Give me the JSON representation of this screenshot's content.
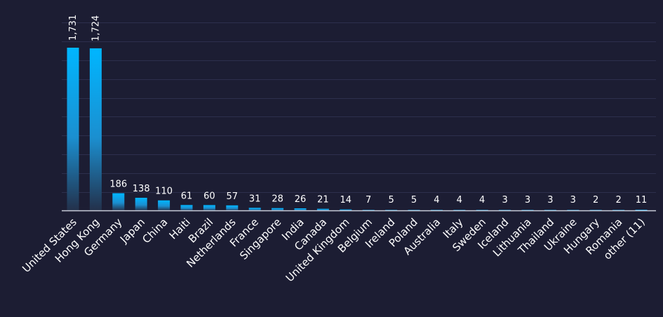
{
  "chart_data": {
    "type": "bar",
    "categories": [
      "United States",
      "Hong Kong",
      "Germany",
      "Japan",
      "China",
      "Haiti",
      "Brazil",
      "Netherlands",
      "France",
      "Singapore",
      "India",
      "Canada",
      "United Kingdom",
      "Belgium",
      "Ireland",
      "Poland",
      "Australia",
      "Italy",
      "Sweden",
      "Iceland",
      "Lithuania",
      "Thailand",
      "Ukraine",
      "Hungary",
      "Romania",
      "other (11)"
    ],
    "values": [
      1731,
      1724,
      186,
      138,
      110,
      61,
      60,
      57,
      31,
      28,
      26,
      21,
      14,
      7,
      5,
      5,
      4,
      4,
      4,
      3,
      3,
      3,
      3,
      2,
      2,
      11
    ],
    "value_labels": [
      "1,731",
      "1,724",
      "186",
      "138",
      "110",
      "61",
      "60",
      "57",
      "31",
      "28",
      "26",
      "21",
      "14",
      "7",
      "5",
      "5",
      "4",
      "4",
      "4",
      "3",
      "3",
      "3",
      "3",
      "2",
      "2",
      "11"
    ],
    "title": "",
    "xlabel": "",
    "ylabel": "",
    "ylim": [
      0,
      1731
    ],
    "grid": true,
    "legend": "none",
    "colors": {
      "background": "#1c1d33",
      "grid": "#2d2f4d",
      "baseline": "#c8cbd8",
      "bar_top": "#00b6ff",
      "bar_bottom": "#23304a",
      "text": "#ffffff"
    }
  }
}
